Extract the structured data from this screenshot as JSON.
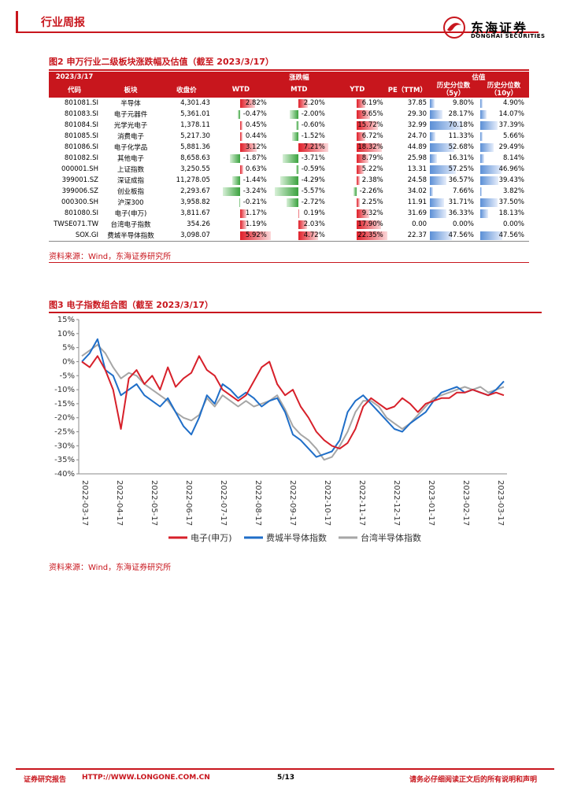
{
  "header": {
    "title": "行业周报",
    "logo_cn": "东海证券",
    "logo_en": "DONGHAI SECURITIES"
  },
  "fig2": {
    "title": "图2 申万行业二级板块涨跌幅及估值（截至 2023/3/17）",
    "head1": {
      "date": "2023/3/17",
      "change": "涨跌幅",
      "valuation": "估值"
    },
    "head2": {
      "code": "代码",
      "name": "板块",
      "close": "收盘价",
      "wtd": "WTD",
      "mtd": "MTD",
      "ytd": "YTD",
      "pe": "PE（TTM）",
      "p5": "历史分位数（5y）",
      "p10": "历史分位数（10y）"
    },
    "rows": [
      {
        "code": "801081.SI",
        "name": "半导体",
        "close": "4,301.43",
        "wtd": "2.82%",
        "wtd_v": 2.82,
        "mtd": "2.20%",
        "mtd_v": 2.2,
        "ytd": "6.19%",
        "ytd_v": 6.19,
        "pe": "37.85",
        "p5": "9.80%",
        "p5_v": 9.8,
        "p10": "4.90%",
        "p10_v": 4.9
      },
      {
        "code": "801083.SI",
        "name": "电子元器件",
        "close": "5,361.01",
        "wtd": "-0.47%",
        "wtd_v": -0.47,
        "mtd": "-2.00%",
        "mtd_v": -2.0,
        "ytd": "9.65%",
        "ytd_v": 9.65,
        "pe": "29.30",
        "p5": "28.17%",
        "p5_v": 28.17,
        "p10": "14.07%",
        "p10_v": 14.07
      },
      {
        "code": "801084.SI",
        "name": "光学光电子",
        "close": "1,378.11",
        "wtd": "0.45%",
        "wtd_v": 0.45,
        "mtd": "-0.60%",
        "mtd_v": -0.6,
        "ytd": "15.72%",
        "ytd_v": 15.72,
        "pe": "32.99",
        "p5": "70.18%",
        "p5_v": 70.18,
        "p10": "37.39%",
        "p10_v": 37.39
      },
      {
        "code": "801085.SI",
        "name": "消费电子",
        "close": "5,217.30",
        "wtd": "0.44%",
        "wtd_v": 0.44,
        "mtd": "-1.52%",
        "mtd_v": -1.52,
        "ytd": "6.72%",
        "ytd_v": 6.72,
        "pe": "24.70",
        "p5": "11.33%",
        "p5_v": 11.33,
        "p10": "5.66%",
        "p10_v": 5.66
      },
      {
        "code": "801086.SI",
        "name": "电子化学品",
        "close": "5,881.36",
        "wtd": "3.12%",
        "wtd_v": 3.12,
        "mtd": "7.21%",
        "mtd_v": 7.21,
        "ytd": "18.32%",
        "ytd_v": 18.32,
        "pe": "44.89",
        "p5": "52.68%",
        "p5_v": 52.68,
        "p10": "29.49%",
        "p10_v": 29.49
      },
      {
        "code": "801082.SI",
        "name": "其他电子",
        "close": "8,658.63",
        "wtd": "-1.87%",
        "wtd_v": -1.87,
        "mtd": "-3.71%",
        "mtd_v": -3.71,
        "ytd": "8.79%",
        "ytd_v": 8.79,
        "pe": "25.98",
        "p5": "16.31%",
        "p5_v": 16.31,
        "p10": "8.14%",
        "p10_v": 8.14
      },
      {
        "code": "000001.SH",
        "name": "上证指数",
        "close": "3,250.55",
        "wtd": "0.63%",
        "wtd_v": 0.63,
        "mtd": "-0.59%",
        "mtd_v": -0.59,
        "ytd": "5.22%",
        "ytd_v": 5.22,
        "pe": "13.31",
        "p5": "57.25%",
        "p5_v": 57.25,
        "p10": "46.96%",
        "p10_v": 46.96
      },
      {
        "code": "399001.SZ",
        "name": "深证成指",
        "close": "11,278.05",
        "wtd": "-1.44%",
        "wtd_v": -1.44,
        "mtd": "-4.29%",
        "mtd_v": -4.29,
        "ytd": "2.38%",
        "ytd_v": 2.38,
        "pe": "24.58",
        "p5": "36.57%",
        "p5_v": 36.57,
        "p10": "39.43%",
        "p10_v": 39.43
      },
      {
        "code": "399006.SZ",
        "name": "创业板指",
        "close": "2,293.67",
        "wtd": "-3.24%",
        "wtd_v": -3.24,
        "mtd": "-5.57%",
        "mtd_v": -5.57,
        "ytd": "-2.26%",
        "ytd_v": -2.26,
        "pe": "34.02",
        "p5": "7.66%",
        "p5_v": 7.66,
        "p10": "3.82%",
        "p10_v": 3.82
      },
      {
        "code": "000300.SH",
        "name": "沪深300",
        "close": "3,958.82",
        "wtd": "-0.21%",
        "wtd_v": -0.21,
        "mtd": "-2.72%",
        "mtd_v": -2.72,
        "ytd": "2.25%",
        "ytd_v": 2.25,
        "pe": "11.91",
        "p5": "31.71%",
        "p5_v": 31.71,
        "p10": "37.50%",
        "p10_v": 37.5
      },
      {
        "code": "801080.SI",
        "name": "电子(申万)",
        "close": "3,811.67",
        "wtd": "1.17%",
        "wtd_v": 1.17,
        "mtd": "0.19%",
        "mtd_v": 0.19,
        "ytd": "9.32%",
        "ytd_v": 9.32,
        "pe": "31.69",
        "p5": "36.33%",
        "p5_v": 36.33,
        "p10": "18.13%",
        "p10_v": 18.13
      },
      {
        "code": "TWSE071.TW",
        "name": "台湾电子指数",
        "close": "354.26",
        "wtd": "1.19%",
        "wtd_v": 1.19,
        "mtd": "2.03%",
        "mtd_v": 2.03,
        "ytd": "17.90%",
        "ytd_v": 17.9,
        "pe": "0.00",
        "p5": "0.00%",
        "p5_v": 0,
        "p10": "0.00%",
        "p10_v": 0
      },
      {
        "code": "SOX.GI",
        "name": "费城半导体指数",
        "close": "3,098.07",
        "wtd": "5.92%",
        "wtd_v": 5.92,
        "mtd": "4.72%",
        "mtd_v": 4.72,
        "ytd": "22.35%",
        "ytd_v": 22.35,
        "pe": "22.37",
        "p5": "47.56%",
        "p5_v": 47.56,
        "p10": "47.56%",
        "p10_v": 47.56
      }
    ],
    "source": "资料来源：Wind，东海证券研究所"
  },
  "fig3": {
    "title": "图3 电子指数组合图（截至 2023/3/17）",
    "source": "资料来源：Wind，东海证券研究所"
  },
  "chart_data": {
    "type": "line",
    "title": "",
    "ylim": [
      -40,
      15
    ],
    "yticks": [
      "15%",
      "10%",
      "5%",
      "0%",
      "-5%",
      "-10%",
      "-15%",
      "-20%",
      "-25%",
      "-30%",
      "-35%",
      "-40%"
    ],
    "yticks_v": [
      15,
      10,
      5,
      0,
      -5,
      -10,
      -15,
      -20,
      -25,
      -30,
      -35,
      -40
    ],
    "xticks": [
      "2022-03-17",
      "2022-04-17",
      "2022-05-17",
      "2022-06-17",
      "2022-07-17",
      "2022-08-17",
      "2022-09-17",
      "2022-10-17",
      "2022-11-17",
      "2022-12-17",
      "2023-01-17",
      "2023-02-17",
      "2023-03-17"
    ],
    "legend_position": "bottom",
    "series": [
      {
        "name": "电子(申万)",
        "color": "#d7202a",
        "values": [
          0,
          -2,
          2,
          -3,
          -10,
          -24,
          -6,
          -3,
          -8,
          -5,
          -10,
          -2,
          -9,
          -6,
          -4,
          2,
          -3,
          -5,
          -10,
          -12,
          -14,
          -12,
          -7,
          -2,
          0,
          -8,
          -12,
          -10,
          -16,
          -20,
          -25,
          -28,
          -30,
          -31,
          -29,
          -24,
          -16,
          -13,
          -15,
          -17,
          -16,
          -13,
          -15,
          -18,
          -15,
          -14,
          -13,
          -13,
          -11,
          -11,
          -10,
          -11,
          -12,
          -11,
          -12
        ]
      },
      {
        "name": "费城半导体指数",
        "color": "#1f6ec8",
        "values": [
          0,
          3,
          8,
          -3,
          -5,
          -12,
          -10,
          -8,
          -12,
          -14,
          -16,
          -13,
          -18,
          -23,
          -26,
          -20,
          -12,
          -15,
          -8,
          -10,
          -13,
          -11,
          -13,
          -16,
          -14,
          -13,
          -18,
          -26,
          -28,
          -31,
          -34,
          -33,
          -32,
          -28,
          -18,
          -14,
          -12,
          -15,
          -18,
          -21,
          -24,
          -25,
          -22,
          -20,
          -18,
          -14,
          -11,
          -10,
          -9,
          -11,
          -10,
          -11,
          -12,
          -10,
          -7
        ]
      },
      {
        "name": "台湾半导体指数",
        "color": "#a6a6a6",
        "values": [
          2,
          4,
          6,
          3,
          -2,
          -6,
          -4,
          -5,
          -8,
          -10,
          -12,
          -14,
          -18,
          -20,
          -21,
          -19,
          -13,
          -16,
          -12,
          -14,
          -16,
          -14,
          -16,
          -15,
          -14,
          -12,
          -17,
          -23,
          -26,
          -28,
          -31,
          -35,
          -34,
          -30,
          -25,
          -18,
          -14,
          -14,
          -16,
          -20,
          -22,
          -24,
          -22,
          -19,
          -16,
          -13,
          -12,
          -11,
          -10,
          -9,
          -10,
          -9,
          -11,
          -10,
          -9
        ]
      }
    ]
  },
  "footer": {
    "left": "证券研究报告",
    "url": "HTTP://WWW.LONGONE.COM.CN",
    "page": "5/13",
    "right": "请务必仔细阅读正文后的所有说明和声明"
  }
}
